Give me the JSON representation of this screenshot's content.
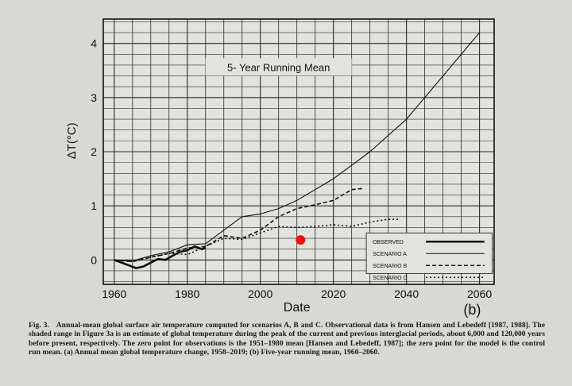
{
  "chart_data": {
    "type": "line",
    "title": "5- Year Running Mean",
    "xlabel": "Date",
    "ylabel": "ΔT(°C)",
    "panel_label": "(b)",
    "xlim": [
      1957,
      2064
    ],
    "ylim": [
      -0.45,
      4.45
    ],
    "xticks": [
      1960,
      1980,
      2000,
      2020,
      2040,
      2060
    ],
    "yticks": [
      0,
      1,
      2,
      3,
      4
    ],
    "grid": true,
    "legend_position": "bottom-right",
    "series": [
      {
        "name": "OBSERVED",
        "style": "solid-thick",
        "x": [
          1960,
          1962,
          1964,
          1966,
          1968,
          1970,
          1972,
          1974,
          1976,
          1978,
          1980,
          1982,
          1984,
          1985
        ],
        "y": [
          0.0,
          -0.05,
          -0.1,
          -0.15,
          -0.12,
          -0.05,
          0.02,
          0.0,
          0.08,
          0.15,
          0.18,
          0.25,
          0.2,
          0.22
        ]
      },
      {
        "name": "SCENARIO A",
        "style": "solid-thin",
        "x": [
          1960,
          1965,
          1970,
          1975,
          1980,
          1985,
          1990,
          1995,
          2000,
          2005,
          2010,
          2020,
          2030,
          2040,
          2050,
          2060
        ],
        "y": [
          0.0,
          -0.02,
          0.08,
          0.15,
          0.28,
          0.3,
          0.55,
          0.8,
          0.85,
          0.95,
          1.1,
          1.5,
          2.0,
          2.6,
          3.4,
          4.2
        ]
      },
      {
        "name": "SCENARIO B",
        "style": "dashed",
        "x": [
          1960,
          1965,
          1970,
          1975,
          1980,
          1985,
          1990,
          1995,
          2000,
          2005,
          2010,
          2015,
          2020,
          2025,
          2028
        ],
        "y": [
          0.0,
          -0.03,
          0.05,
          0.12,
          0.22,
          0.25,
          0.45,
          0.4,
          0.55,
          0.8,
          0.95,
          1.02,
          1.1,
          1.3,
          1.32
        ]
      },
      {
        "name": "SCENARIO C",
        "style": "dotted",
        "x": [
          1960,
          1965,
          1970,
          1975,
          1980,
          1985,
          1990,
          1995,
          2000,
          2005,
          2010,
          2015,
          2020,
          2025,
          2030,
          2035,
          2038
        ],
        "y": [
          0.0,
          -0.03,
          0.05,
          0.12,
          0.1,
          0.25,
          0.4,
          0.38,
          0.5,
          0.62,
          0.6,
          0.62,
          0.65,
          0.62,
          0.7,
          0.75,
          0.75
        ]
      }
    ]
  },
  "marker": {
    "x": 2011,
    "y": 0.37,
    "color": "#ee1111"
  },
  "caption": {
    "fig": "Fig. 3.",
    "text": "Annual-mean global surface air temperature computed for scenarios A, B and C. Observational data is from Hansen and Lebedeff [1987, 1988]. The shaded range in Figure 3a is an estimate of global temperature during the peak of the current and previous interglacial periods, about 6,000 and 120,000 years before present, respectively. The zero point for observations is the 1951–1980 mean [Hansen and Lebedeff, 1987]; the zero point for the model is the control run mean. (a) Annual mean global temperature change, 1958–2019; (b) Five-year running mean, 1960–2060."
  }
}
